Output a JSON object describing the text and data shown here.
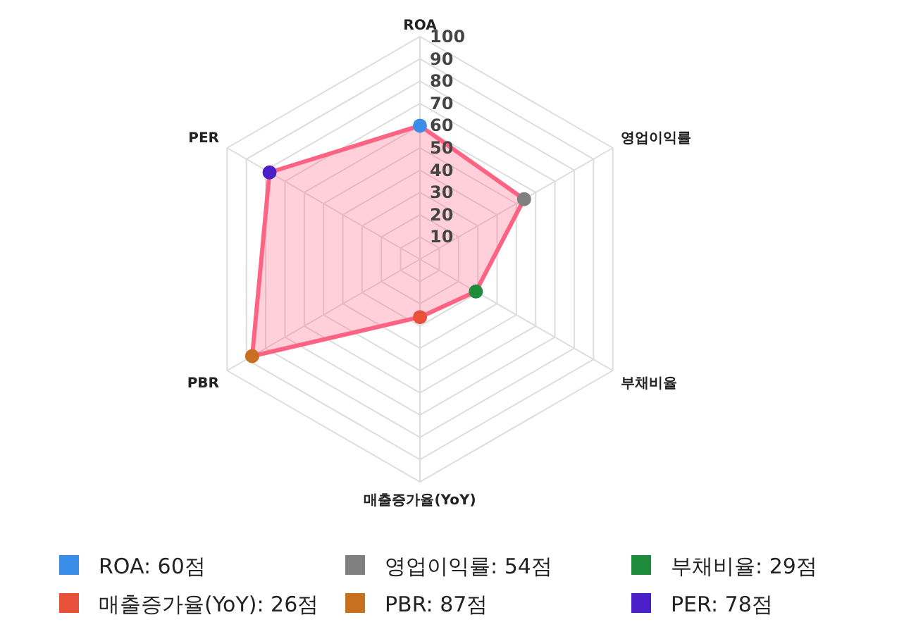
{
  "chart_data": {
    "type": "radar",
    "categories": [
      "ROA",
      "영업이익률",
      "부채비율",
      "매출증가율(YoY)",
      "PBR",
      "PER"
    ],
    "values": [
      60,
      54,
      29,
      26,
      87,
      78
    ],
    "annotations": [
      "ROA: 60점",
      "영업이익률: 54점",
      "부채비율: 29점",
      "매출증가율(YoY): 26점",
      "PBR: 87점",
      "PER: 78점"
    ],
    "color": "#ff6384",
    "colors": [
      "#3b8ee8",
      "#808080",
      "#1e8c3a",
      "#e8503a",
      "#c87020",
      "#4a1fc8"
    ],
    "ylim": [
      0,
      100
    ],
    "yticks": [
      10,
      20,
      30,
      40,
      50,
      60,
      70,
      80,
      90,
      100
    ],
    "grid": true,
    "marker": "circle",
    "line_style": "solid"
  }
}
